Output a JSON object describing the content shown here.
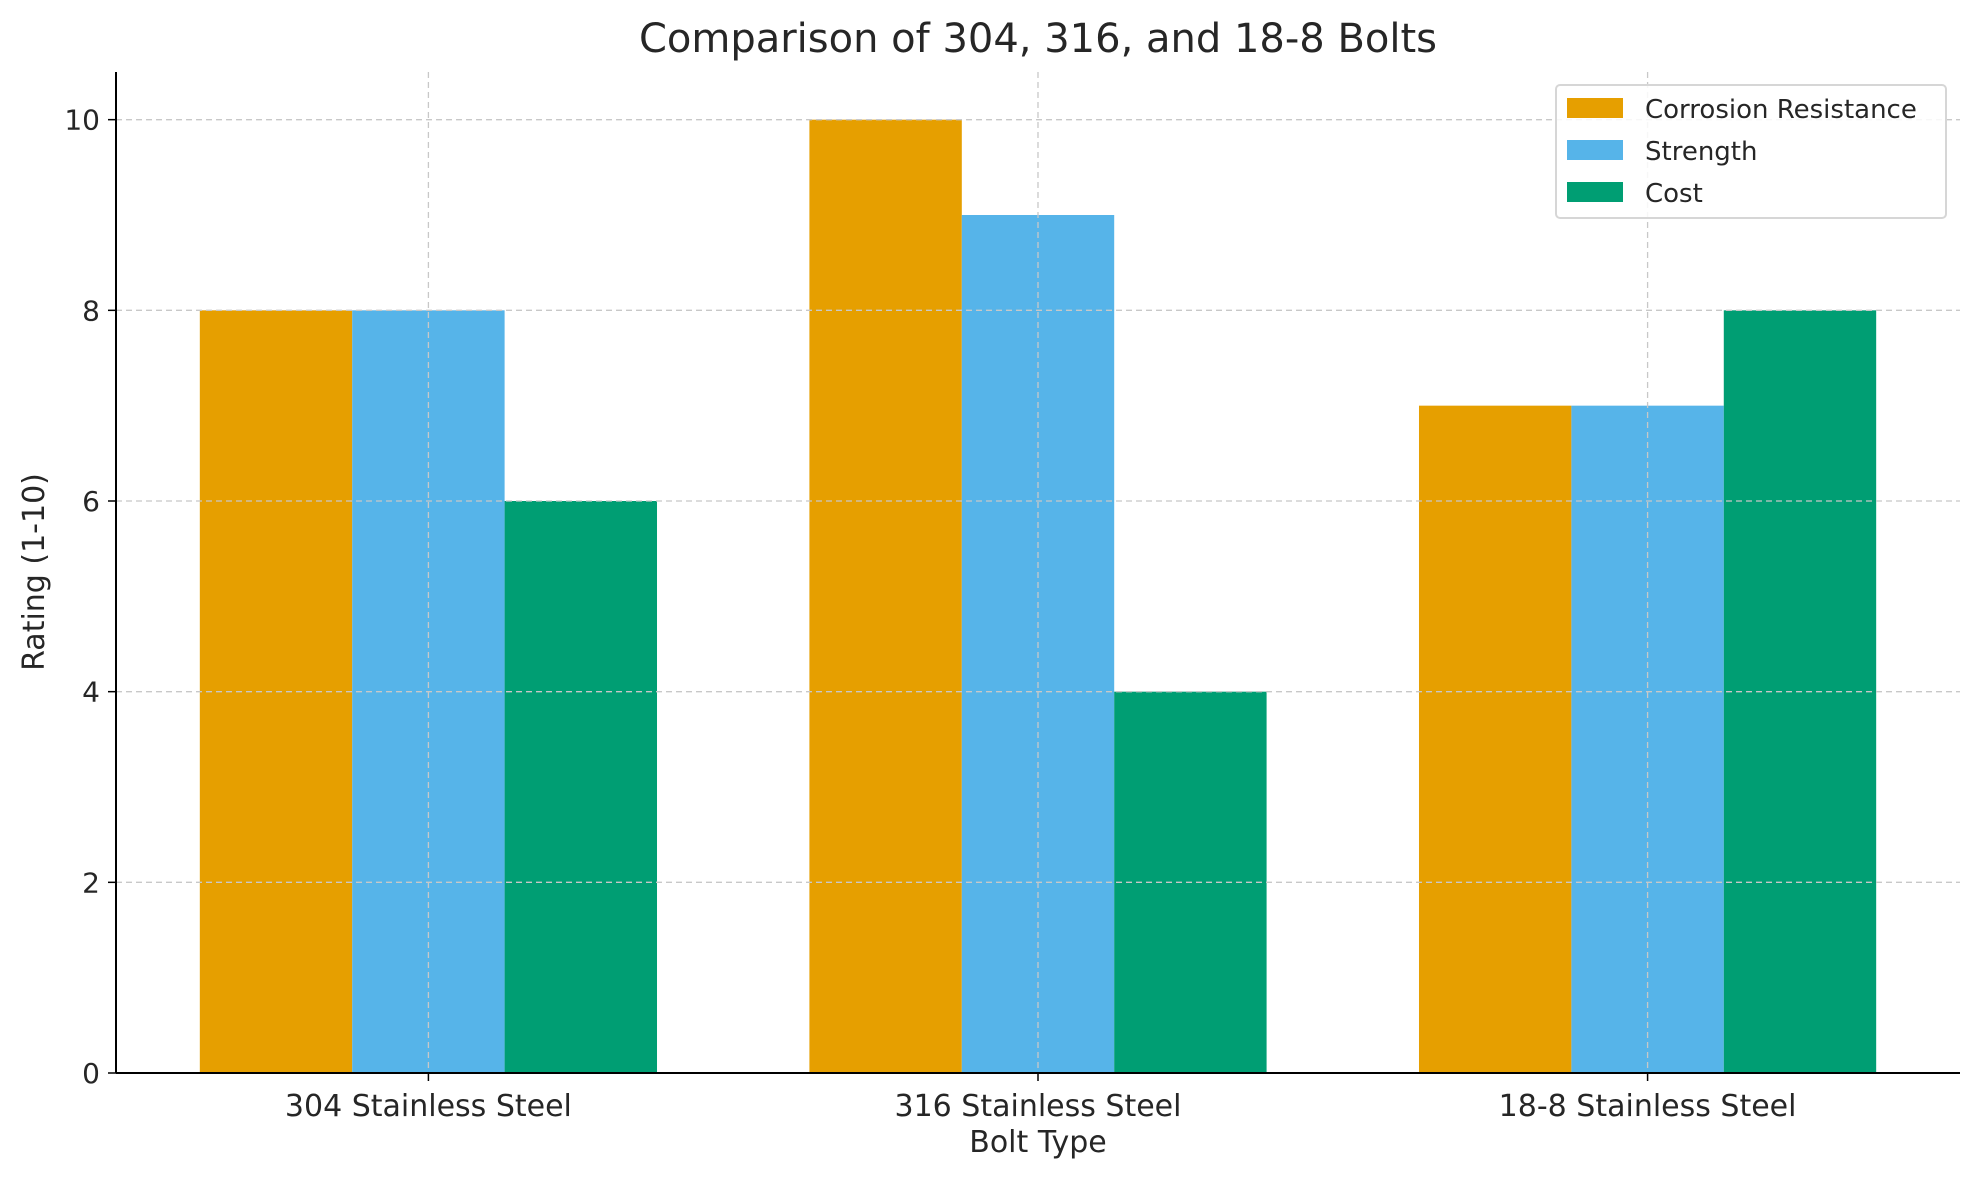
{
  "chart_data": {
    "type": "bar",
    "title": "Comparison of 304, 316, and 18-8 Bolts",
    "xlabel": "Bolt Type",
    "ylabel": "Rating (1-10)",
    "categories": [
      "304 Stainless Steel",
      "316 Stainless Steel",
      "18-8 Stainless Steel"
    ],
    "series": [
      {
        "name": "Corrosion Resistance",
        "values": [
          8,
          10,
          7
        ],
        "color": "#E69F00"
      },
      {
        "name": "Strength",
        "values": [
          8,
          9,
          7
        ],
        "color": "#56B4E9"
      },
      {
        "name": "Cost",
        "values": [
          6,
          4,
          8
        ],
        "color": "#009E73"
      }
    ],
    "ylim": [
      0,
      10.5
    ],
    "yticks": [
      0,
      2,
      4,
      6,
      8,
      10
    ],
    "grid": true,
    "legend_placement": "top-right"
  }
}
